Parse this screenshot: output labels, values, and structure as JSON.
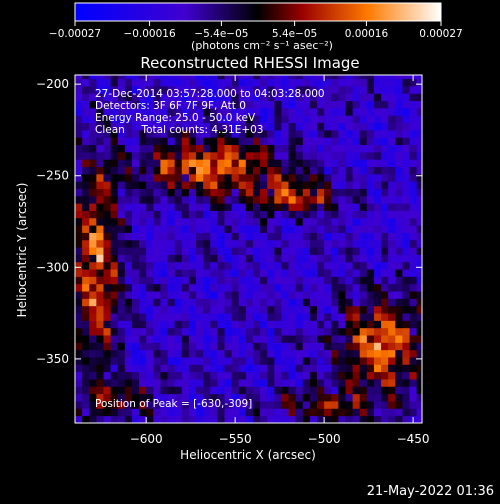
{
  "chart_data": {
    "type": "heatmap",
    "title": "Reconstructed RHESSI Image",
    "xlabel": "Heliocentric X (arcsec)",
    "ylabel": "Heliocentric Y (arcsec)",
    "xlim": [
      -640,
      -445
    ],
    "ylim": [
      -385,
      -195
    ],
    "x_ticks": [
      -600,
      -550,
      -500,
      -450
    ],
    "y_ticks": [
      -200,
      -250,
      -300,
      -350
    ],
    "x_tick_labels": [
      "−600",
      "−550",
      "−500",
      "−450"
    ],
    "y_tick_labels": [
      "−200",
      "−250",
      "−300",
      "−350"
    ],
    "colorbar": {
      "range": [
        -0.00027,
        0.00027
      ],
      "tick_values": [
        -0.00027,
        -0.00016,
        -5.4e-05,
        5.4e-05,
        0.00016,
        0.00027
      ],
      "tick_labels": [
        "−0.00027",
        "−0.00016",
        "−5.4e−05",
        "5.4e−05",
        "0.00016",
        "0.00027"
      ],
      "unit_text": "(photons cm⁻² s⁻¹ asec⁻²)"
    },
    "annotations": [
      "27-Dec-2014 03:57:28.000 to 04:03:28.000",
      "Detectors: 3F 6F 7F 9F, Att 0",
      "Energy Range: 25.0 - 50.0 keV",
      "Clean     Total counts: 4.31E+03"
    ],
    "peak_label": "Position of Peak = [-630,-309]",
    "sources": [
      {
        "x": -563,
        "y": -245,
        "rx": 40,
        "ry": 15,
        "intensity": 0.00024
      },
      {
        "x": -515,
        "y": -262,
        "rx": 22,
        "ry": 10,
        "intensity": 0.00018
      },
      {
        "x": -628,
        "y": -300,
        "rx": 13,
        "ry": 58,
        "intensity": 0.00022
      },
      {
        "x": -468,
        "y": -342,
        "rx": 24,
        "ry": 26,
        "intensity": 0.00024
      },
      {
        "x": -500,
        "y": -375,
        "rx": 30,
        "ry": 8,
        "intensity": 0.00014
      },
      {
        "x": -612,
        "y": -372,
        "rx": 22,
        "ry": 10,
        "intensity": 0.00012
      }
    ],
    "background_level": -0.00012,
    "legend": "none",
    "grid": false
  },
  "footer": {
    "timestamp": "21-May-2022 01:36"
  }
}
